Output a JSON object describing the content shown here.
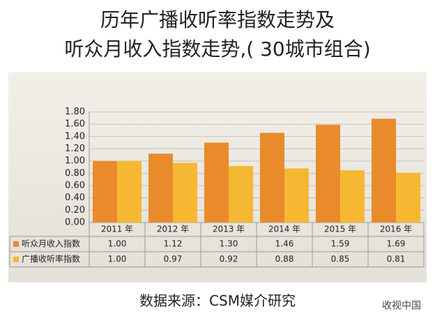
{
  "chart_data": {
    "type": "bar",
    "title": "历年广播收听率指数走势及",
    "subtitle": "听众月收入指数走势,( 30城市组合)",
    "categories": [
      "2011 年",
      "2012 年",
      "2013 年",
      "2014 年",
      "2015 年",
      "2016 年"
    ],
    "series": [
      {
        "name": "听众月收入指数",
        "color": "#e98b2a",
        "values": [
          1.0,
          1.12,
          1.3,
          1.46,
          1.59,
          1.69
        ],
        "value_labels": [
          "1.00",
          "1.12",
          "1.30",
          "1.46",
          "1.59",
          "1.69"
        ]
      },
      {
        "name": "广播收听率指数",
        "color": "#f6b832",
        "values": [
          1.0,
          0.97,
          0.92,
          0.88,
          0.85,
          0.81
        ],
        "value_labels": [
          "1.00",
          "0.97",
          "0.92",
          "0.88",
          "0.85",
          "0.81"
        ]
      }
    ],
    "ylim": [
      0,
      1.8
    ],
    "yticks": [
      {
        "value": 0,
        "label": "0.00"
      },
      {
        "value": 0.2,
        "label": "0.20"
      },
      {
        "value": 0.4,
        "label": "0.40"
      },
      {
        "value": 0.6,
        "label": "0.60"
      },
      {
        "value": 0.8,
        "label": "0.80"
      },
      {
        "value": 1.0,
        "label": "1.00"
      },
      {
        "value": 1.2,
        "label": "1.20"
      },
      {
        "value": 1.4,
        "label": "1.40"
      },
      {
        "value": 1.6,
        "label": "1.60"
      },
      {
        "value": 1.8,
        "label": "1.80"
      }
    ],
    "grid": true,
    "source": "数据来源：CSM媒介研究",
    "watermark": "收视中国"
  }
}
